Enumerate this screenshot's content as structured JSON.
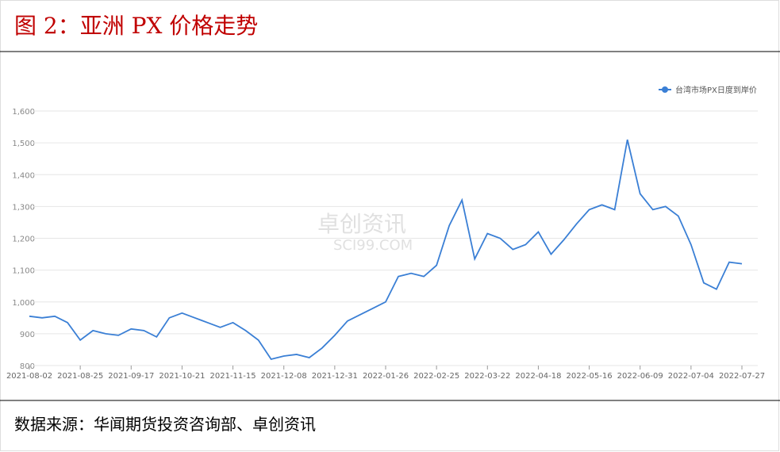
{
  "header": {
    "title": "图 2：亚洲 PX 价格走势"
  },
  "chart_data": {
    "type": "line",
    "categories": [
      "2021-08-02",
      null,
      null,
      null,
      "2021-08-25",
      null,
      null,
      null,
      "2021-09-17",
      null,
      null,
      null,
      "2021-10-21",
      null,
      null,
      null,
      "2021-11-15",
      null,
      null,
      null,
      "2021-12-08",
      null,
      null,
      null,
      "2021-12-31",
      null,
      null,
      null,
      "2022-01-26",
      null,
      null,
      null,
      "2022-02-25",
      null,
      null,
      null,
      "2022-03-22",
      null,
      null,
      null,
      "2022-04-18",
      null,
      null,
      null,
      "2022-05-16",
      null,
      null,
      null,
      "2022-06-09",
      null,
      null,
      null,
      "2022-07-04",
      null,
      null,
      null,
      "2022-07-27"
    ],
    "series": [
      {
        "name": "台湾市场PX日度到岸价",
        "color": "#3a7fd5",
        "values": [
          955,
          950,
          955,
          935,
          880,
          910,
          900,
          895,
          915,
          910,
          890,
          950,
          965,
          950,
          935,
          920,
          935,
          910,
          880,
          820,
          830,
          835,
          825,
          855,
          895,
          940,
          960,
          980,
          1000,
          1080,
          1090,
          1080,
          1115,
          1240,
          1320,
          1135,
          1215,
          1200,
          1165,
          1180,
          1220,
          1150,
          1195,
          1245,
          1290,
          1305,
          1290,
          1510,
          1340,
          1290,
          1300,
          1270,
          1180,
          1060,
          1040,
          1125,
          1120
        ]
      }
    ],
    "ylim": [
      800,
      1600
    ],
    "yticks": [
      800,
      900,
      {
        "value": 1000,
        "label": "1,000"
      },
      {
        "value": 1100,
        "label": "1,100"
      },
      {
        "value": 1200,
        "label": "1,200"
      },
      {
        "value": 1300,
        "label": "1,300"
      },
      {
        "value": 1400,
        "label": "1,400"
      },
      {
        "value": 1500,
        "label": "1,500"
      },
      {
        "value": 1600,
        "label": "1,600"
      }
    ],
    "grid": true,
    "legend": "top-right",
    "watermark": [
      "卓创资讯",
      "SCI99.COM"
    ]
  },
  "footer": {
    "source": "数据来源：华闻期货投资咨询部、卓创资讯"
  }
}
